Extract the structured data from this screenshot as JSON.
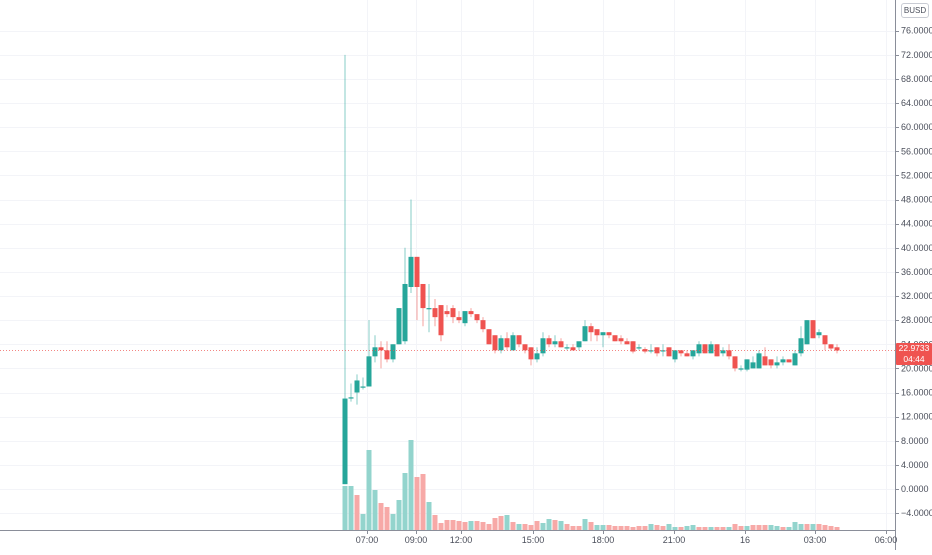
{
  "header": {
    "currency": "BUSD"
  },
  "price_tag": {
    "price": "22.9733",
    "countdown": "04:44",
    "color": "#ef5350"
  },
  "colors": {
    "up": "#26a69a",
    "down": "#ef5350",
    "up_volume": "#93d4cd",
    "down_volume": "#f7a9a7",
    "grid": "#f3f4f8",
    "axis": "#8a8e99",
    "price_line": "#ef5350"
  },
  "y_axis": {
    "ticks": [
      "76.0000",
      "72.0000",
      "68.0000",
      "64.0000",
      "60.0000",
      "56.0000",
      "52.0000",
      "48.0000",
      "44.0000",
      "40.0000",
      "36.0000",
      "32.0000",
      "28.0000",
      "24.0000",
      "20.0000",
      "16.0000",
      "12.0000",
      "8.0000",
      "4.0000",
      "0.0000",
      "−4.0000"
    ],
    "values": [
      76,
      72,
      68,
      64,
      60,
      56,
      52,
      48,
      44,
      40,
      36,
      32,
      28,
      24,
      20,
      16,
      12,
      8,
      4,
      0,
      -4
    ]
  },
  "x_axis": {
    "labels": [
      "07:00",
      "09:00",
      "12:00",
      "15:00",
      "18:00",
      "21:00",
      "16",
      "03:00",
      "06:00"
    ],
    "positions": [
      367,
      416,
      461,
      533,
      603,
      674,
      745,
      815,
      886
    ]
  },
  "chart_data": {
    "type": "candlestick",
    "title": "",
    "quote_currency": "BUSD",
    "last_price": 22.9733,
    "ylim": [
      -6,
      78
    ],
    "grid": true,
    "xlabel": "",
    "ylabel": "",
    "x_tick_labels": [
      "07:00",
      "09:00",
      "12:00",
      "15:00",
      "18:00",
      "21:00",
      "16",
      "03:00",
      "06:00"
    ],
    "candles": [
      {
        "x": 345,
        "o": 0.8,
        "h": 72.0,
        "l": 0.8,
        "c": 15.0
      },
      {
        "x": 351,
        "o": 15.0,
        "h": 17.5,
        "l": 14.5,
        "c": 15.2
      },
      {
        "x": 357,
        "o": 16.0,
        "h": 19.0,
        "l": 14.0,
        "c": 18.0
      },
      {
        "x": 363,
        "o": 17.0,
        "h": 18.5,
        "l": 16.5,
        "c": 17.0
      },
      {
        "x": 369,
        "o": 17.0,
        "h": 28.0,
        "l": 17.0,
        "c": 22.0
      },
      {
        "x": 375,
        "o": 22.0,
        "h": 25.5,
        "l": 21.0,
        "c": 23.5
      },
      {
        "x": 381,
        "o": 23.5,
        "h": 24.5,
        "l": 20.0,
        "c": 23.0
      },
      {
        "x": 387,
        "o": 23.0,
        "h": 24.5,
        "l": 21.0,
        "c": 21.5
      },
      {
        "x": 393,
        "o": 21.5,
        "h": 24.0,
        "l": 21.0,
        "c": 24.0
      },
      {
        "x": 399,
        "o": 24.0,
        "h": 30.0,
        "l": 24.0,
        "c": 30.0
      },
      {
        "x": 405,
        "o": 24.5,
        "h": 40.0,
        "l": 24.0,
        "c": 34.0
      },
      {
        "x": 411,
        "o": 33.5,
        "h": 48.0,
        "l": 32.5,
        "c": 38.5
      },
      {
        "x": 417,
        "o": 38.5,
        "h": 38.5,
        "l": 28.0,
        "c": 33.5
      },
      {
        "x": 423,
        "o": 34.0,
        "h": 34.0,
        "l": 27.0,
        "c": 30.0
      },
      {
        "x": 429,
        "o": 30.0,
        "h": 34.0,
        "l": 26.0,
        "c": 30.0
      },
      {
        "x": 435,
        "o": 30.0,
        "h": 31.5,
        "l": 27.0,
        "c": 28.5
      },
      {
        "x": 441,
        "o": 30.5,
        "h": 30.5,
        "l": 24.5,
        "c": 25.5
      },
      {
        "x": 447,
        "o": 29.5,
        "h": 30.5,
        "l": 28.5,
        "c": 29.0
      },
      {
        "x": 453,
        "o": 30.0,
        "h": 30.5,
        "l": 27.5,
        "c": 28.5
      },
      {
        "x": 459,
        "o": 28.5,
        "h": 29.5,
        "l": 27.5,
        "c": 28.0
      },
      {
        "x": 465,
        "o": 27.5,
        "h": 29.5,
        "l": 27.0,
        "c": 29.5
      },
      {
        "x": 471,
        "o": 29.5,
        "h": 30.0,
        "l": 28.5,
        "c": 29.0
      },
      {
        "x": 477,
        "o": 29.0,
        "h": 29.0,
        "l": 27.5,
        "c": 28.0
      },
      {
        "x": 483,
        "o": 28.0,
        "h": 28.5,
        "l": 26.0,
        "c": 26.5
      },
      {
        "x": 489,
        "o": 26.5,
        "h": 26.5,
        "l": 24.0,
        "c": 24.0
      },
      {
        "x": 495,
        "o": 25.5,
        "h": 25.5,
        "l": 22.5,
        "c": 23.0
      },
      {
        "x": 501,
        "o": 23.0,
        "h": 25.5,
        "l": 22.5,
        "c": 25.0
      },
      {
        "x": 507,
        "o": 25.0,
        "h": 26.0,
        "l": 23.0,
        "c": 23.5
      },
      {
        "x": 513,
        "o": 23.0,
        "h": 26.0,
        "l": 23.0,
        "c": 25.5
      },
      {
        "x": 519,
        "o": 25.5,
        "h": 25.5,
        "l": 23.5,
        "c": 24.0
      },
      {
        "x": 525,
        "o": 24.0,
        "h": 24.0,
        "l": 22.5,
        "c": 23.0
      },
      {
        "x": 531,
        "o": 23.5,
        "h": 23.5,
        "l": 20.5,
        "c": 21.5
      },
      {
        "x": 537,
        "o": 21.5,
        "h": 23.5,
        "l": 21.0,
        "c": 22.5
      },
      {
        "x": 543,
        "o": 22.5,
        "h": 26.0,
        "l": 22.0,
        "c": 25.0
      },
      {
        "x": 549,
        "o": 25.0,
        "h": 25.5,
        "l": 23.5,
        "c": 24.0
      },
      {
        "x": 555,
        "o": 24.0,
        "h": 25.5,
        "l": 23.5,
        "c": 24.5
      },
      {
        "x": 561,
        "o": 24.5,
        "h": 25.0,
        "l": 23.5,
        "c": 23.5
      },
      {
        "x": 567,
        "o": 23.5,
        "h": 24.0,
        "l": 23.0,
        "c": 23.5
      },
      {
        "x": 573,
        "o": 23.5,
        "h": 24.0,
        "l": 23.0,
        "c": 23.0
      },
      {
        "x": 579,
        "o": 23.5,
        "h": 24.0,
        "l": 23.0,
        "c": 24.5
      },
      {
        "x": 585,
        "o": 24.5,
        "h": 28.0,
        "l": 24.5,
        "c": 27.0
      },
      {
        "x": 591,
        "o": 27.0,
        "h": 27.5,
        "l": 24.5,
        "c": 26.0
      },
      {
        "x": 597,
        "o": 26.5,
        "h": 26.5,
        "l": 24.5,
        "c": 25.5
      },
      {
        "x": 603,
        "o": 25.5,
        "h": 26.0,
        "l": 23.5,
        "c": 26.0
      },
      {
        "x": 609,
        "o": 26.0,
        "h": 26.0,
        "l": 25.0,
        "c": 25.5
      },
      {
        "x": 615,
        "o": 25.5,
        "h": 25.5,
        "l": 24.5,
        "c": 24.5
      },
      {
        "x": 621,
        "o": 25.0,
        "h": 25.5,
        "l": 24.0,
        "c": 24.5
      },
      {
        "x": 627,
        "o": 24.5,
        "h": 25.0,
        "l": 24.0,
        "c": 24.0
      },
      {
        "x": 633,
        "o": 24.5,
        "h": 24.5,
        "l": 22.5,
        "c": 22.8
      },
      {
        "x": 639,
        "o": 23.5,
        "h": 24.0,
        "l": 23.0,
        "c": 23.5
      },
      {
        "x": 645,
        "o": 23.2,
        "h": 23.5,
        "l": 22.5,
        "c": 22.8
      },
      {
        "x": 651,
        "o": 23.0,
        "h": 24.0,
        "l": 22.5,
        "c": 23.0
      },
      {
        "x": 657,
        "o": 23.5,
        "h": 23.5,
        "l": 22.0,
        "c": 22.5
      },
      {
        "x": 663,
        "o": 23.0,
        "h": 24.0,
        "l": 22.0,
        "c": 23.0
      },
      {
        "x": 669,
        "o": 23.5,
        "h": 23.5,
        "l": 22.0,
        "c": 22.0
      },
      {
        "x": 675,
        "o": 21.5,
        "h": 23.0,
        "l": 21.0,
        "c": 23.0
      },
      {
        "x": 681,
        "o": 23.0,
        "h": 23.0,
        "l": 22.0,
        "c": 22.5
      },
      {
        "x": 687,
        "o": 22.5,
        "h": 23.0,
        "l": 22.0,
        "c": 22.0
      },
      {
        "x": 693,
        "o": 22.0,
        "h": 23.0,
        "l": 21.5,
        "c": 23.0
      },
      {
        "x": 699,
        "o": 22.5,
        "h": 24.5,
        "l": 22.0,
        "c": 24.0
      },
      {
        "x": 705,
        "o": 24.0,
        "h": 24.0,
        "l": 22.5,
        "c": 22.5
      },
      {
        "x": 711,
        "o": 22.5,
        "h": 24.5,
        "l": 22.5,
        "c": 24.0
      },
      {
        "x": 717,
        "o": 24.0,
        "h": 24.0,
        "l": 22.0,
        "c": 22.0
      },
      {
        "x": 723,
        "o": 22.5,
        "h": 23.5,
        "l": 22.0,
        "c": 23.0
      },
      {
        "x": 729,
        "o": 23.0,
        "h": 24.0,
        "l": 21.5,
        "c": 22.0
      },
      {
        "x": 735,
        "o": 22.0,
        "h": 22.0,
        "l": 19.5,
        "c": 20.0
      },
      {
        "x": 741,
        "o": 20.0,
        "h": 20.5,
        "l": 19.5,
        "c": 20.0
      },
      {
        "x": 747,
        "o": 19.8,
        "h": 21.5,
        "l": 19.5,
        "c": 21.5
      },
      {
        "x": 753,
        "o": 20.0,
        "h": 22.0,
        "l": 20.0,
        "c": 21.0
      },
      {
        "x": 759,
        "o": 20.0,
        "h": 23.0,
        "l": 20.0,
        "c": 22.5
      },
      {
        "x": 765,
        "o": 22.0,
        "h": 23.5,
        "l": 20.5,
        "c": 20.5
      },
      {
        "x": 771,
        "o": 21.5,
        "h": 21.5,
        "l": 20.0,
        "c": 20.5
      },
      {
        "x": 777,
        "o": 20.5,
        "h": 22.0,
        "l": 20.0,
        "c": 21.0
      },
      {
        "x": 783,
        "o": 21.0,
        "h": 22.0,
        "l": 20.5,
        "c": 21.5
      },
      {
        "x": 789,
        "o": 21.5,
        "h": 21.5,
        "l": 21.0,
        "c": 21.0
      },
      {
        "x": 795,
        "o": 20.5,
        "h": 23.0,
        "l": 20.5,
        "c": 22.5
      },
      {
        "x": 801,
        "o": 22.5,
        "h": 27.0,
        "l": 22.0,
        "c": 25.0
      },
      {
        "x": 807,
        "o": 24.0,
        "h": 28.0,
        "l": 24.0,
        "c": 28.0
      },
      {
        "x": 813,
        "o": 28.0,
        "h": 28.0,
        "l": 25.0,
        "c": 25.0
      },
      {
        "x": 819,
        "o": 25.5,
        "h": 26.5,
        "l": 25.0,
        "c": 26.0
      },
      {
        "x": 825,
        "o": 25.5,
        "h": 25.5,
        "l": 23.0,
        "c": 24.0
      },
      {
        "x": 831,
        "o": 24.0,
        "h": 24.0,
        "l": 23.0,
        "c": 23.3
      },
      {
        "x": 837,
        "o": 23.5,
        "h": 24.0,
        "l": 22.5,
        "c": 22.97
      }
    ],
    "volume": [
      {
        "x": 345,
        "v": 44,
        "dir": "up"
      },
      {
        "x": 351,
        "v": 44,
        "dir": "up"
      },
      {
        "x": 357,
        "v": 35,
        "dir": "down"
      },
      {
        "x": 363,
        "v": 16,
        "dir": "up"
      },
      {
        "x": 369,
        "v": 80,
        "dir": "up"
      },
      {
        "x": 375,
        "v": 40,
        "dir": "up"
      },
      {
        "x": 381,
        "v": 27,
        "dir": "down"
      },
      {
        "x": 387,
        "v": 23,
        "dir": "down"
      },
      {
        "x": 393,
        "v": 16,
        "dir": "up"
      },
      {
        "x": 399,
        "v": 30,
        "dir": "up"
      },
      {
        "x": 405,
        "v": 57,
        "dir": "up"
      },
      {
        "x": 411,
        "v": 90,
        "dir": "up"
      },
      {
        "x": 417,
        "v": 53,
        "dir": "down"
      },
      {
        "x": 423,
        "v": 56,
        "dir": "down"
      },
      {
        "x": 429,
        "v": 28,
        "dir": "up"
      },
      {
        "x": 435,
        "v": 15,
        "dir": "down"
      },
      {
        "x": 441,
        "v": 7,
        "dir": "down"
      },
      {
        "x": 447,
        "v": 10,
        "dir": "down"
      },
      {
        "x": 453,
        "v": 10,
        "dir": "down"
      },
      {
        "x": 459,
        "v": 9,
        "dir": "down"
      },
      {
        "x": 465,
        "v": 8,
        "dir": "down"
      },
      {
        "x": 471,
        "v": 9,
        "dir": "up"
      },
      {
        "x": 477,
        "v": 9,
        "dir": "down"
      },
      {
        "x": 483,
        "v": 8,
        "dir": "down"
      },
      {
        "x": 489,
        "v": 6,
        "dir": "down"
      },
      {
        "x": 495,
        "v": 12,
        "dir": "down"
      },
      {
        "x": 501,
        "v": 14,
        "dir": "down"
      },
      {
        "x": 507,
        "v": 15,
        "dir": "up"
      },
      {
        "x": 513,
        "v": 8,
        "dir": "down"
      },
      {
        "x": 519,
        "v": 6,
        "dir": "up"
      },
      {
        "x": 525,
        "v": 6,
        "dir": "down"
      },
      {
        "x": 531,
        "v": 5,
        "dir": "down"
      },
      {
        "x": 537,
        "v": 9,
        "dir": "down"
      },
      {
        "x": 543,
        "v": 7,
        "dir": "up"
      },
      {
        "x": 549,
        "v": 11,
        "dir": "up"
      },
      {
        "x": 555,
        "v": 10,
        "dir": "down"
      },
      {
        "x": 561,
        "v": 9,
        "dir": "up"
      },
      {
        "x": 567,
        "v": 6,
        "dir": "down"
      },
      {
        "x": 573,
        "v": 4,
        "dir": "down"
      },
      {
        "x": 579,
        "v": 4,
        "dir": "down"
      },
      {
        "x": 585,
        "v": 11,
        "dir": "up"
      },
      {
        "x": 591,
        "v": 8,
        "dir": "down"
      },
      {
        "x": 597,
        "v": 5,
        "dir": "up"
      },
      {
        "x": 603,
        "v": 5,
        "dir": "up"
      },
      {
        "x": 609,
        "v": 5,
        "dir": "down"
      },
      {
        "x": 615,
        "v": 4,
        "dir": "down"
      },
      {
        "x": 621,
        "v": 4,
        "dir": "down"
      },
      {
        "x": 627,
        "v": 4,
        "dir": "down"
      },
      {
        "x": 633,
        "v": 3,
        "dir": "down"
      },
      {
        "x": 639,
        "v": 4,
        "dir": "down"
      },
      {
        "x": 645,
        "v": 4,
        "dir": "down"
      },
      {
        "x": 651,
        "v": 6,
        "dir": "up"
      },
      {
        "x": 657,
        "v": 5,
        "dir": "down"
      },
      {
        "x": 663,
        "v": 4,
        "dir": "down"
      },
      {
        "x": 669,
        "v": 6,
        "dir": "up"
      },
      {
        "x": 675,
        "v": 3,
        "dir": "up"
      },
      {
        "x": 681,
        "v": 3,
        "dir": "down"
      },
      {
        "x": 687,
        "v": 4,
        "dir": "up"
      },
      {
        "x": 693,
        "v": 5,
        "dir": "up"
      },
      {
        "x": 699,
        "v": 3,
        "dir": "down"
      },
      {
        "x": 705,
        "v": 3,
        "dir": "down"
      },
      {
        "x": 711,
        "v": 3,
        "dir": "up"
      },
      {
        "x": 717,
        "v": 3,
        "dir": "down"
      },
      {
        "x": 723,
        "v": 3,
        "dir": "down"
      },
      {
        "x": 729,
        "v": 3,
        "dir": "up"
      },
      {
        "x": 735,
        "v": 6,
        "dir": "down"
      },
      {
        "x": 741,
        "v": 4,
        "dir": "down"
      },
      {
        "x": 747,
        "v": 4,
        "dir": "up"
      },
      {
        "x": 753,
        "v": 5,
        "dir": "down"
      },
      {
        "x": 759,
        "v": 5,
        "dir": "down"
      },
      {
        "x": 765,
        "v": 5,
        "dir": "down"
      },
      {
        "x": 771,
        "v": 5,
        "dir": "up"
      },
      {
        "x": 777,
        "v": 4,
        "dir": "up"
      },
      {
        "x": 783,
        "v": 3,
        "dir": "down"
      },
      {
        "x": 789,
        "v": 3,
        "dir": "up"
      },
      {
        "x": 795,
        "v": 8,
        "dir": "up"
      },
      {
        "x": 801,
        "v": 6,
        "dir": "up"
      },
      {
        "x": 807,
        "v": 6,
        "dir": "down"
      },
      {
        "x": 813,
        "v": 6,
        "dir": "up"
      },
      {
        "x": 819,
        "v": 6,
        "dir": "down"
      },
      {
        "x": 825,
        "v": 5,
        "dir": "down"
      },
      {
        "x": 831,
        "v": 4,
        "dir": "down"
      },
      {
        "x": 837,
        "v": 3,
        "dir": "down"
      }
    ]
  }
}
